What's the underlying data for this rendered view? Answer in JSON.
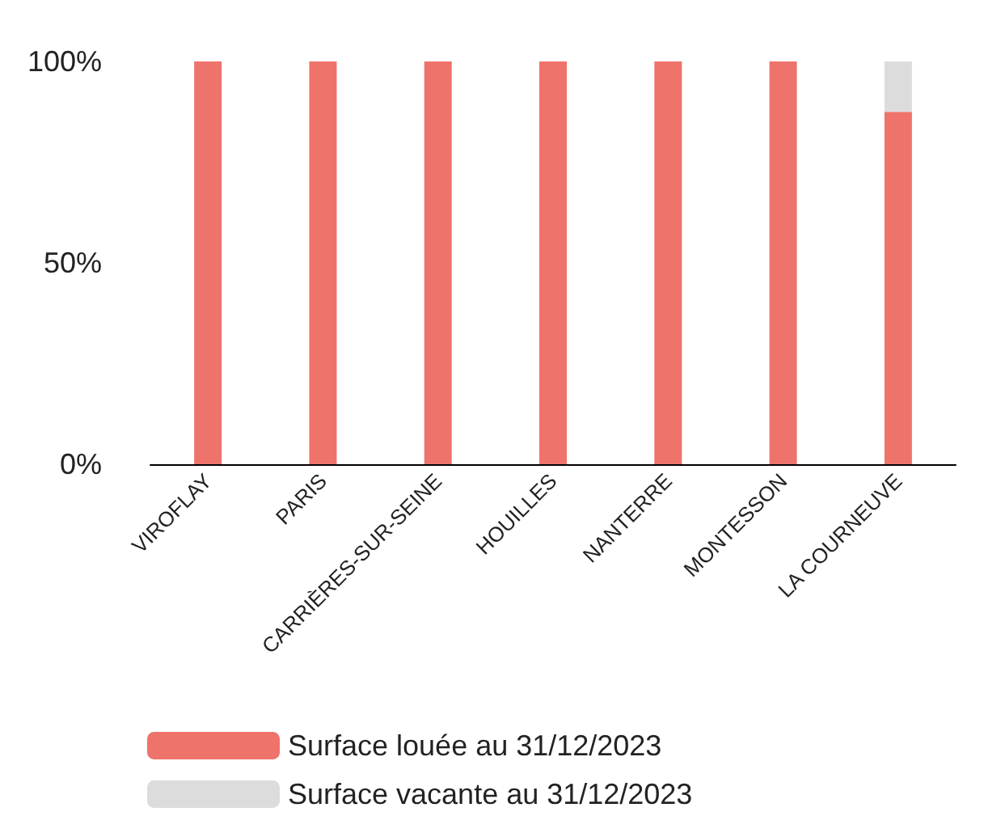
{
  "chart_data": {
    "type": "bar",
    "stacked": true,
    "categories": [
      "VIROFLAY",
      "PARIS",
      "CARRIÈRES-SUR-SEINE",
      "HOUILLES",
      "NANTERRE",
      "MONTESSON",
      "LA COURNEUVE"
    ],
    "series": [
      {
        "name": "Surface louée au 31/12/2023",
        "color": "#ee736b",
        "values": [
          100,
          100,
          100,
          100,
          100,
          100,
          87.5
        ]
      },
      {
        "name": "Surface vacante au 31/12/2023",
        "color": "#dcdcdc",
        "values": [
          0,
          0,
          0,
          0,
          0,
          0,
          12.5
        ]
      }
    ],
    "ylim": [
      0,
      100
    ],
    "yticks": [
      {
        "value": 0,
        "label": "0%"
      },
      {
        "value": 50,
        "label": "50%"
      },
      {
        "value": 100,
        "label": "100%"
      }
    ],
    "grid": false,
    "legend": "bottom"
  }
}
